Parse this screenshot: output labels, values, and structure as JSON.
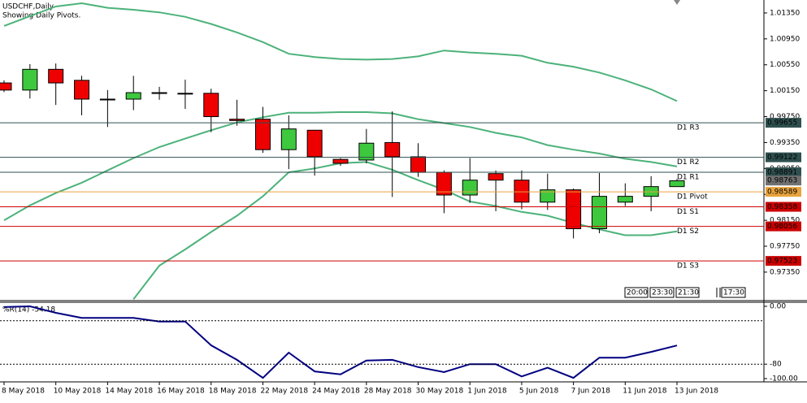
{
  "chart_data": [
    {
      "type": "candlestick",
      "title": "USDCHF,Daily",
      "subtitle": "Showing Daily Pivots.",
      "categories": [
        "8 May 2018",
        null,
        "10 May 2018",
        null,
        "14 May 2018",
        null,
        "16 May 2018",
        null,
        "18 May 2018",
        null,
        "22 May 2018",
        null,
        "24 May 2018",
        null,
        "28 May 2018",
        null,
        "30 May 2018",
        null,
        "1 Jun 2018",
        null,
        "5 Jun 2018",
        null,
        "7 Jun 2018",
        null,
        "11 Jun 2018",
        null,
        "13 Jun 2018"
      ],
      "open": [
        1.0027,
        1.0016,
        1.0048,
        1.0031,
        1.0002,
        1.0002,
        1.0012,
        1.0011,
        1.0011,
        0.9971,
        0.9971,
        0.9924,
        0.9954,
        0.9909,
        0.9908,
        0.9935,
        0.9913,
        0.9889,
        0.9854,
        0.9887,
        0.9877,
        0.9843,
        0.9862,
        0.9802,
        0.9843,
        0.9852,
        0.9867
      ],
      "high": [
        1.0031,
        1.0056,
        1.0057,
        1.0038,
        1.0016,
        1.0038,
        1.0021,
        1.0032,
        1.0018,
        1.0001,
        0.999,
        0.9977,
        0.9954,
        0.9911,
        0.9956,
        0.9983,
        0.9934,
        0.9892,
        0.9911,
        0.9892,
        0.9892,
        0.9887,
        0.9864,
        0.9888,
        0.9872,
        0.9883,
        0.9879
      ],
      "low": [
        1.0013,
        1.0003,
        0.9993,
        0.9977,
        0.9959,
        0.9985,
        1.0001,
        0.9987,
        0.9951,
        0.9961,
        0.9919,
        0.9894,
        0.9884,
        0.9899,
        0.9903,
        0.9851,
        0.9882,
        0.9826,
        0.9842,
        0.9829,
        0.9832,
        0.9831,
        0.9787,
        0.9795,
        0.9837,
        0.9829,
        0.9867
      ],
      "close": [
        1.0016,
        1.0048,
        1.0027,
        1.0002,
        1.0001,
        1.0012,
        1.0011,
        1.001,
        0.9975,
        0.9969,
        0.9924,
        0.9956,
        0.9913,
        0.9903,
        0.9934,
        0.9913,
        0.9889,
        0.9854,
        0.9877,
        0.9877,
        0.9843,
        0.9862,
        0.9802,
        0.9852,
        0.9852,
        0.9867,
        0.9876
      ],
      "up_color": "#3ec83e",
      "down_color": "#ee0000",
      "bands": {
        "color": "#4cb27a",
        "upper": [
          1.0115,
          1.013,
          1.0145,
          1.015,
          1.0143,
          1.014,
          1.0136,
          1.0129,
          1.0118,
          1.0105,
          1.009,
          1.0072,
          1.0067,
          1.0064,
          1.0063,
          1.0064,
          1.0068,
          1.0077,
          1.0074,
          1.0072,
          1.0069,
          1.0058,
          1.0052,
          1.0043,
          1.0031,
          1.0017,
          0.9999
        ],
        "middle": [
          0.9815,
          0.9838,
          0.9857,
          0.9873,
          0.9892,
          0.9911,
          0.9928,
          0.9941,
          0.9954,
          0.9966,
          0.9974,
          0.9981,
          0.9981,
          0.9982,
          0.9982,
          0.998,
          0.9971,
          0.9965,
          0.9959,
          0.995,
          0.9943,
          0.9931,
          0.9924,
          0.9918,
          0.991,
          0.9905,
          0.9898
        ],
        "lower": [
          null,
          null,
          null,
          null,
          null,
          0.9693,
          0.9745,
          0.977,
          0.9797,
          0.9822,
          0.9852,
          0.9889,
          0.9895,
          0.9903,
          0.9905,
          0.9893,
          0.9877,
          0.9862,
          0.9844,
          0.9837,
          0.9828,
          0.9822,
          0.9811,
          0.9801,
          0.9792,
          0.9792,
          0.9798
        ]
      },
      "pivots": [
        {
          "label": "D1 R3",
          "value": 0.99655,
          "color": "#2f4f4f"
        },
        {
          "label": "D1 R2",
          "value": 0.99122,
          "color": "#2f4f4f"
        },
        {
          "label": "D1 R1",
          "value": 0.98891,
          "color": "#2f4f4f"
        },
        {
          "label": "D1 Pivot",
          "value": 0.98589,
          "color": "#e8a33c"
        },
        {
          "label": "D1 S1",
          "value": 0.98358,
          "color": "#cc0000"
        },
        {
          "label": "D1 S2",
          "value": 0.98056,
          "color": "#cc0000"
        },
        {
          "label": "D1 S3",
          "value": 0.97523,
          "color": "#cc0000"
        }
      ],
      "last_price": 0.98763,
      "ylim": [
        0.9691,
        1.0155
      ],
      "yticks": [
        {
          "value": 1.0135,
          "label": "1.01350"
        },
        {
          "value": 1.0095,
          "label": "1.00950"
        },
        {
          "value": 1.0055,
          "label": "1.00550"
        },
        {
          "value": 1.0015,
          "label": "1.00150"
        },
        {
          "value": 0.9975,
          "label": "0.99750"
        },
        {
          "value": 0.9935,
          "label": "0.99350"
        },
        {
          "value": 0.9895,
          "label": "0.98950"
        },
        {
          "value": 0.9855,
          "label": "0.98550"
        },
        {
          "value": 0.9815,
          "label": "0.98150"
        },
        {
          "value": 0.9775,
          "label": "0.97750"
        },
        {
          "value": 0.9735,
          "label": "0.97350"
        }
      ]
    },
    {
      "type": "line",
      "label": "%R(14) -54.18",
      "color": "#000080",
      "values": [
        -1,
        0,
        -9,
        -16,
        -16,
        -16,
        -21,
        -21,
        -54,
        -74,
        -99,
        -64,
        -90,
        -94,
        -75,
        -74,
        -84,
        -91,
        -80,
        -80,
        -97,
        -85,
        -99,
        -71,
        -71,
        -63,
        -54.18
      ],
      "levels": [
        -20,
        -80
      ],
      "ylim": [
        -104.5,
        5.6
      ],
      "yticks": [
        {
          "value": 0,
          "label": "0.00"
        },
        -80,
        {
          "value": -100,
          "label": "-100.00"
        }
      ]
    }
  ],
  "time_boxes": [
    "20:00",
    "23:30",
    "21:30",
    "17:30"
  ]
}
